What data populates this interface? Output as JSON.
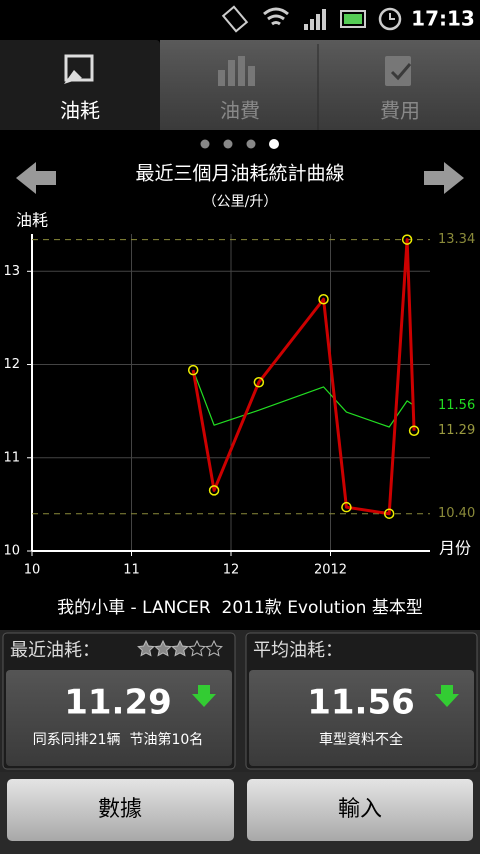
{
  "status": {
    "time": "17:13"
  },
  "tabs": [
    "油耗",
    "油費",
    "費用"
  ],
  "chart_data": {
    "type": "line",
    "title": "最近三個月油耗統計曲線",
    "subtitle": "（公里/升）",
    "y_label": "油耗",
    "x_label": "月份",
    "xlim": [
      10,
      14
    ],
    "ylim": [
      10,
      13.4
    ],
    "xticks": [
      10,
      11,
      12,
      {
        "value": 13,
        "label": "2012"
      }
    ],
    "yticks": [
      10,
      11,
      12,
      13
    ],
    "grid": true,
    "series": [
      {
        "color": "#22dd22",
        "markers": false,
        "x": [
          11.62,
          11.83,
          12.28,
          12.93,
          13.16,
          13.59,
          13.77,
          13.84
        ],
        "values": [
          11.94,
          11.35,
          11.51,
          11.76,
          11.49,
          11.33,
          11.61,
          11.56
        ]
      },
      {
        "color": "#cc0000",
        "markers": true,
        "x": [
          11.62,
          11.83,
          12.28,
          12.93,
          13.16,
          13.59,
          13.77,
          13.84
        ],
        "values": [
          11.94,
          10.65,
          11.81,
          12.7,
          10.47,
          10.4,
          13.34,
          11.29
        ]
      }
    ],
    "reference_lines": [
      13.34,
      {
        "value": 10.4,
        "label": "10.40"
      }
    ],
    "reference_color": "#8a8a3a",
    "end_labels": [
      {
        "value": 11.56,
        "color": "#22dd22"
      },
      {
        "value": 11.29,
        "color": "#9a9a40"
      }
    ]
  },
  "car": "我的小車 - LANCER  2011款 Evolution 基本型",
  "cards": [
    {
      "title": "最近油耗：",
      "value": "11.29",
      "note": "同系同排21辆  节油第10名"
    },
    {
      "title": "平均油耗：",
      "value": "11.56",
      "note": "車型資料不全"
    }
  ],
  "buttons": [
    "數據",
    "輸入"
  ]
}
